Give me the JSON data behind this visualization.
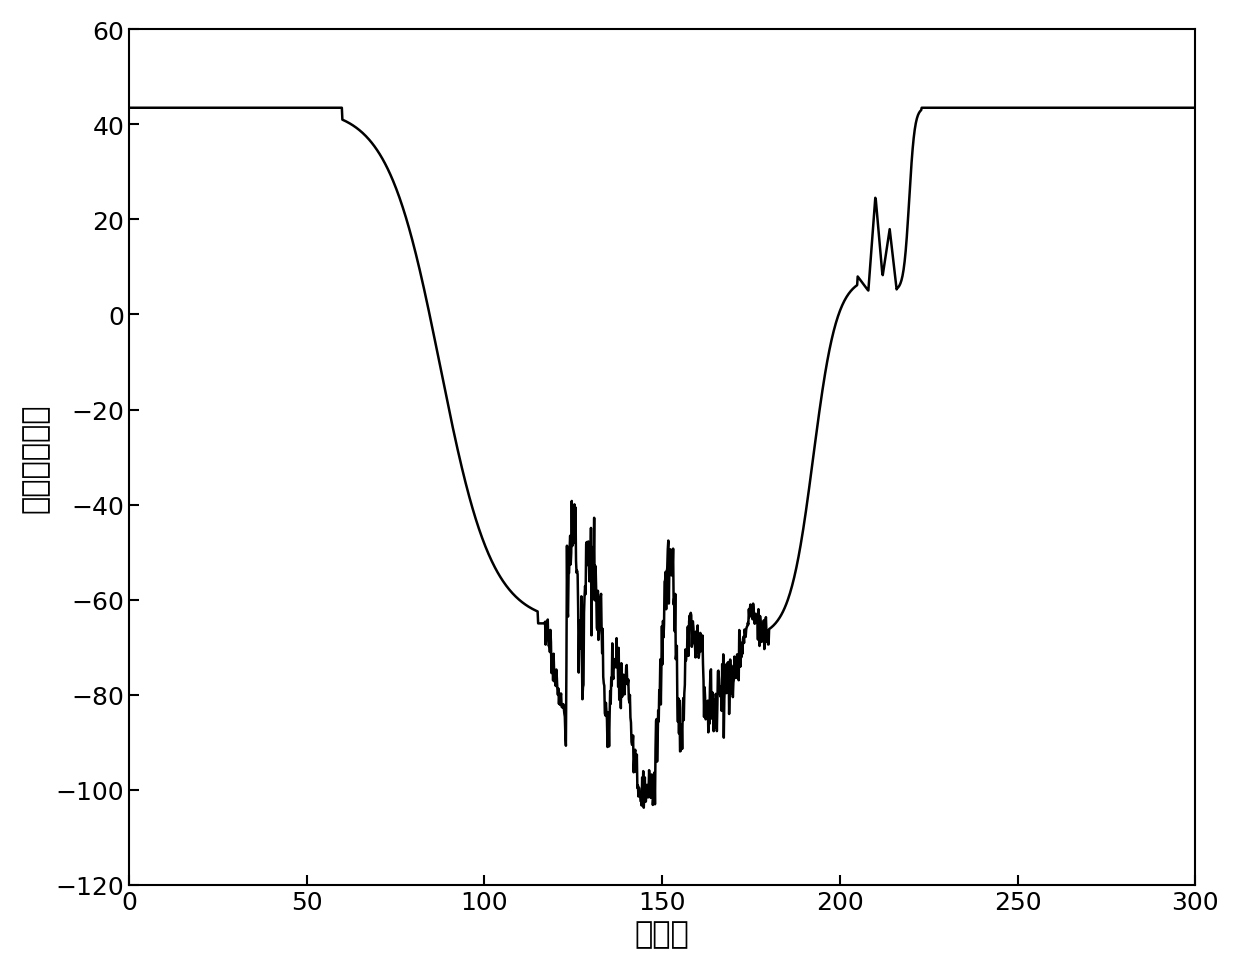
{
  "xlim": [
    0,
    300
  ],
  "ylim": [
    -120,
    60
  ],
  "xticks": [
    0,
    50,
    100,
    150,
    200,
    250,
    300
  ],
  "yticks": [
    -120,
    -100,
    -80,
    -60,
    -40,
    -20,
    0,
    20,
    40,
    60
  ],
  "xlabel": "采样点",
  "ylabel": "理想补偶功率",
  "line_color": "#000000",
  "line_width": 1.8,
  "background_color": "#ffffff",
  "flat_level": 43.5,
  "tick_fontsize": 18,
  "label_fontsize": 22
}
